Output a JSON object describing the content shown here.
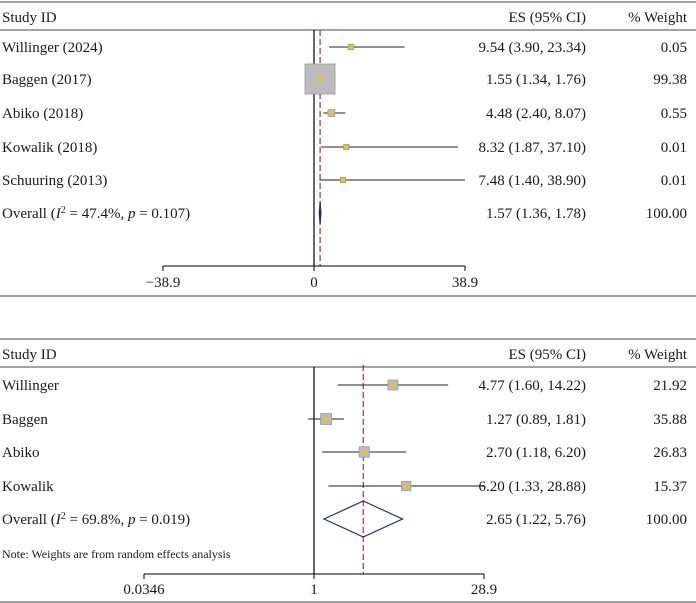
{
  "chart_data": [
    {
      "type": "forest",
      "header": {
        "study": "Study ID",
        "es": "ES (95% CI)",
        "weight": "% Weight"
      },
      "xlim": [
        -38.9,
        38.9
      ],
      "null_value": 0,
      "pooled_value": 1.57,
      "ticks": [
        {
          "value": -38.9,
          "label": "−38.9"
        },
        {
          "value": 0,
          "label": "0"
        },
        {
          "value": 38.9,
          "label": "38.9"
        }
      ],
      "studies": [
        {
          "name": "Willinger (2024)",
          "es": 9.54,
          "lo": 3.9,
          "hi": 23.34,
          "es_text": "9.54 (3.90, 23.34)",
          "weight": 0.05,
          "weight_text": "0.05"
        },
        {
          "name": "Baggen (2017)",
          "es": 1.55,
          "lo": 1.34,
          "hi": 1.76,
          "es_text": "1.55 (1.34, 1.76)",
          "weight": 99.38,
          "weight_text": "99.38"
        },
        {
          "name": "Abiko (2018)",
          "es": 4.48,
          "lo": 2.4,
          "hi": 8.07,
          "es_text": "4.48 (2.40, 8.07)",
          "weight": 0.55,
          "weight_text": "0.55"
        },
        {
          "name": "Kowalik (2018)",
          "es": 8.32,
          "lo": 1.87,
          "hi": 37.1,
          "es_text": "8.32 (1.87, 37.10)",
          "weight": 0.01,
          "weight_text": "0.01"
        },
        {
          "name": "Schuuring (2013)",
          "es": 7.48,
          "lo": 1.4,
          "hi": 38.9,
          "es_text": "7.48 (1.40, 38.90)",
          "weight": 0.01,
          "weight_text": "0.01"
        }
      ],
      "overall": {
        "prefix": "Overall (",
        "i2_symbol": "I",
        "i2_exponent": "2",
        "i2_text": " = 47.4%, ",
        "p_symbol": "p",
        "p_text": " = 0.107)",
        "es": 1.57,
        "lo": 1.36,
        "hi": 1.78,
        "es_text": "1.57 (1.36, 1.78)",
        "weight_text": "100.00"
      },
      "note": ""
    },
    {
      "type": "forest",
      "header": {
        "study": "Study ID",
        "es": "ES (95% CI)",
        "weight": "% Weight"
      },
      "xlim": [
        0.0346,
        28.9
      ],
      "scale": "log",
      "null_value": 1,
      "pooled_value": 2.65,
      "ticks": [
        {
          "value": 0.0346,
          "label": "0.0346"
        },
        {
          "value": 1,
          "label": "1"
        },
        {
          "value": 28.9,
          "label": "28.9"
        }
      ],
      "studies": [
        {
          "name": "Willinger",
          "es": 4.77,
          "lo": 1.6,
          "hi": 14.22,
          "es_text": "4.77 (1.60, 14.22)",
          "weight": 21.92,
          "weight_text": "21.92"
        },
        {
          "name": "Baggen",
          "es": 1.27,
          "lo": 0.89,
          "hi": 1.81,
          "es_text": "1.27 (0.89, 1.81)",
          "weight": 35.88,
          "weight_text": "35.88"
        },
        {
          "name": "Abiko",
          "es": 2.7,
          "lo": 1.18,
          "hi": 6.2,
          "es_text": "2.70 (1.18, 6.20)",
          "weight": 26.83,
          "weight_text": "26.83"
        },
        {
          "name": "Kowalik",
          "es": 6.2,
          "lo": 1.33,
          "hi": 28.88,
          "es_text": "6.20 (1.33, 28.88)",
          "weight": 15.37,
          "weight_text": "15.37"
        }
      ],
      "overall": {
        "prefix": "Overall (",
        "i2_symbol": "I",
        "i2_exponent": "2",
        "i2_text": " = 69.8%, ",
        "p_symbol": "p",
        "p_text": " = 0.019)",
        "es": 2.65,
        "lo": 1.22,
        "hi": 5.76,
        "es_text": "2.65 (1.22, 5.76)",
        "weight_text": "100.00"
      },
      "note": "Note: Weights are from random effects analysis"
    }
  ],
  "colors": {
    "text": "#1a1a1a",
    "rule": "#444444",
    "ci_line": "#222222",
    "box_fill": "#bcbcbc",
    "box_stroke": "#9a9a9a",
    "point": "#f0c419",
    "pooled_line": "#a8323c",
    "diamond": "#1f2a7a"
  }
}
